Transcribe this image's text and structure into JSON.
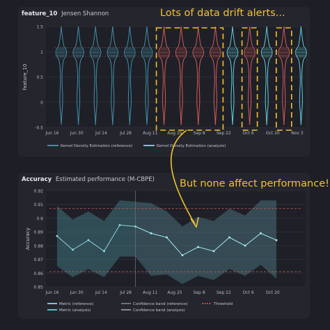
{
  "drift_panel": {
    "metric_label": "feature_10",
    "method_label": "Jensen Shannon",
    "y_axis_label": "feature_10",
    "y_ticks": [
      "1.5",
      "1",
      "0.5",
      "0",
      "-0.5"
    ],
    "x_ticks": [
      "Jun 16",
      "Jun 30",
      "Jul 14",
      "Jul 28",
      "Aug 11",
      "Aug 25",
      "Sep 8",
      "Sep 22",
      "Oct 6",
      "Oct 20",
      "Nov 3"
    ],
    "legend": [
      "Kernel Density Estimation (reference)",
      "Kernel Density Estimation (analysis)"
    ]
  },
  "performance_panel": {
    "metric_label": "Accuracy",
    "method_label": "Estimated performance (M-CBPE)",
    "y_axis_label": "Accuracy",
    "y_ticks": [
      "0.92",
      "0.91",
      "0.9",
      "0.89",
      "0.88",
      "0.87",
      "0.86",
      "0.85"
    ],
    "x_ticks": [
      "Jun 16",
      "Jun 30",
      "Jul 14",
      "Jul 28",
      "Aug 11",
      "Aug 25",
      "Sep 8",
      "Sep 22",
      "Oct 6",
      "Oct 20"
    ],
    "legend": [
      "Metric (reference)",
      "Confidence band (reference)",
      "Threshold",
      "Metric (analysis)",
      "Confidence band (analysis)"
    ]
  },
  "annotations": {
    "drift_alerts": "Lots of data drift alerts...",
    "performance_note": "But none affect performance!"
  },
  "colors": {
    "reference": "#3f8fa6",
    "analysis": "#5fd0de",
    "alert": "#d45a5a",
    "highlight": "#f2c230",
    "threshold": "#c85757"
  },
  "chart_data": [
    {
      "type": "area",
      "subtype": "kde-violin-per-period",
      "x_labels": [
        "Jun 16",
        "Jun 30",
        "Jul 14",
        "Jul 28",
        "Aug 11",
        "Aug 25",
        "Sep 8",
        "Sep 22",
        "Oct 6",
        "Oct 20",
        "Nov 3"
      ],
      "ylabel": "feature_10",
      "ylim": [
        -0.5,
        1.5
      ],
      "periods": [
        {
          "set": "reference",
          "alert": false
        },
        {
          "set": "reference",
          "alert": false
        },
        {
          "set": "reference",
          "alert": false
        },
        {
          "set": "reference",
          "alert": false
        },
        {
          "set": "reference",
          "alert": false
        },
        {
          "set": "reference",
          "alert": false
        },
        {
          "set": "analysis",
          "alert": true
        },
        {
          "set": "analysis",
          "alert": true
        },
        {
          "set": "analysis",
          "alert": true
        },
        {
          "set": "analysis",
          "alert": true
        },
        {
          "set": "analysis",
          "alert": false
        },
        {
          "set": "analysis",
          "alert": true
        },
        {
          "set": "analysis",
          "alert": false
        },
        {
          "set": "analysis",
          "alert": true
        },
        {
          "set": "analysis",
          "alert": false
        }
      ],
      "highlighted_periods": [
        6,
        7,
        8,
        9,
        11,
        13
      ],
      "legend": [
        "Kernel Density Estimation (reference)",
        "Kernel Density Estimation (analysis)"
      ]
    },
    {
      "type": "line",
      "ylabel": "Accuracy",
      "ylim": [
        0.85,
        0.92
      ],
      "x_labels": [
        "Jun 16",
        "Jun 30",
        "Jul 14",
        "Jul 28",
        "Aug 11",
        "Aug 25",
        "Sep 8",
        "Sep 22",
        "Oct 6",
        "Oct 20"
      ],
      "reference": {
        "values": [
          0.887,
          0.877,
          0.884,
          0.876,
          0.895,
          0.894
        ],
        "lower": [
          0.865,
          0.857,
          0.863,
          0.857,
          0.872,
          0.872
        ],
        "upper": [
          0.909,
          0.899,
          0.905,
          0.898,
          0.913,
          0.912
        ]
      },
      "analysis": {
        "values": [
          0.894,
          0.889,
          0.886,
          0.873,
          0.879,
          0.876,
          0.886,
          0.88,
          0.889,
          0.884
        ],
        "lower": [
          0.868,
          0.858,
          0.859,
          0.852,
          0.858,
          0.855,
          0.863,
          0.858,
          0.866,
          0.856
        ],
        "upper": [
          0.914,
          0.911,
          0.905,
          0.894,
          0.901,
          0.898,
          0.907,
          0.902,
          0.913,
          0.913
        ]
      },
      "thresholds": {
        "upper": 0.907,
        "lower": 0.861
      },
      "legend": [
        "Metric (reference)",
        "Confidence band (reference)",
        "Threshold",
        "Metric (analysis)",
        "Confidence band (analysis)"
      ]
    }
  ]
}
